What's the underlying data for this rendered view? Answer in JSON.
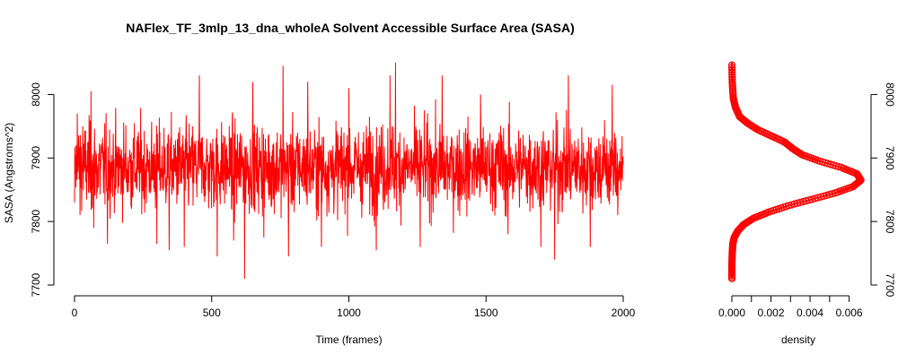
{
  "chart_data": [
    {
      "id": "timeseries",
      "type": "line",
      "title": "NAFlex_TF_3mlp_13_dna_wholeA Solvent Accessible Surface Area (SASA)",
      "xlabel": "Time (frames)",
      "ylabel": "SASA (Angstroms^2)",
      "xlim": [
        0,
        2000
      ],
      "ylim": [
        7700,
        8050
      ],
      "xticks": [
        0,
        500,
        1000,
        1500,
        2000
      ],
      "yticks": [
        7700,
        7800,
        7900,
        8000
      ],
      "grid": false,
      "series": [
        {
          "color": "#ff0000",
          "n_frames": 2000,
          "mean": 7885,
          "sd": 40,
          "min": 7710,
          "max": 8050,
          "samples": [
            [
              0,
              7830
            ],
            [
              10,
              7970
            ],
            [
              20,
              7810
            ],
            [
              30,
              7950
            ],
            [
              60,
              8005
            ],
            [
              70,
              7790
            ],
            [
              120,
              7765
            ],
            [
              300,
              7765
            ],
            [
              345,
              7755
            ],
            [
              400,
              7760
            ],
            [
              455,
              8030
            ],
            [
              520,
              7745
            ],
            [
              580,
              7770
            ],
            [
              620,
              7710
            ],
            [
              650,
              8020
            ],
            [
              690,
              7775
            ],
            [
              760,
              8045
            ],
            [
              780,
              7745
            ],
            [
              850,
              8020
            ],
            [
              900,
              7760
            ],
            [
              1000,
              8010
            ],
            [
              1100,
              7755
            ],
            [
              1150,
              8030
            ],
            [
              1170,
              8050
            ],
            [
              1260,
              7760
            ],
            [
              1340,
              8030
            ],
            [
              1480,
              8000
            ],
            [
              1580,
              7780
            ],
            [
              1700,
              7760
            ],
            [
              1750,
              7740
            ],
            [
              1800,
              8030
            ],
            [
              1880,
              7760
            ],
            [
              1960,
              8015
            ],
            [
              1980,
              7810
            ],
            [
              2000,
              7890
            ]
          ]
        }
      ]
    },
    {
      "id": "density",
      "type": "line",
      "title": "",
      "xlabel": "density",
      "ylabel": "",
      "xlim": [
        0,
        0.0068
      ],
      "ylim": [
        7700,
        8050
      ],
      "xticks": [
        0.0,
        0.002,
        0.004,
        0.006
      ],
      "xtick_labels": [
        "0.000",
        "0.002",
        "0.004",
        "0.006"
      ],
      "yticks": [
        7700,
        7800,
        7900,
        8000
      ],
      "grid": false,
      "series": [
        {
          "color": "#ff0000",
          "marker": "circle",
          "x": [
            0.0,
            0.0,
            2e-05,
            5e-05,
            0.00012,
            0.0003,
            0.0006,
            0.0011,
            0.0019,
            0.0029,
            0.0041,
            0.0053,
            0.0062,
            0.0066,
            0.0064,
            0.0056,
            0.0045,
            0.0036,
            0.0031,
            0.0027,
            0.002,
            0.0013,
            0.0008,
            0.0004,
            0.00018,
            7e-05,
            2e-05,
            0.0
          ],
          "y": [
            7710,
            7730,
            7750,
            7765,
            7775,
            7785,
            7795,
            7805,
            7815,
            7825,
            7835,
            7845,
            7855,
            7865,
            7875,
            7885,
            7895,
            7905,
            7915,
            7925,
            7935,
            7945,
            7955,
            7965,
            7980,
            7995,
            8020,
            8050
          ]
        }
      ]
    }
  ]
}
